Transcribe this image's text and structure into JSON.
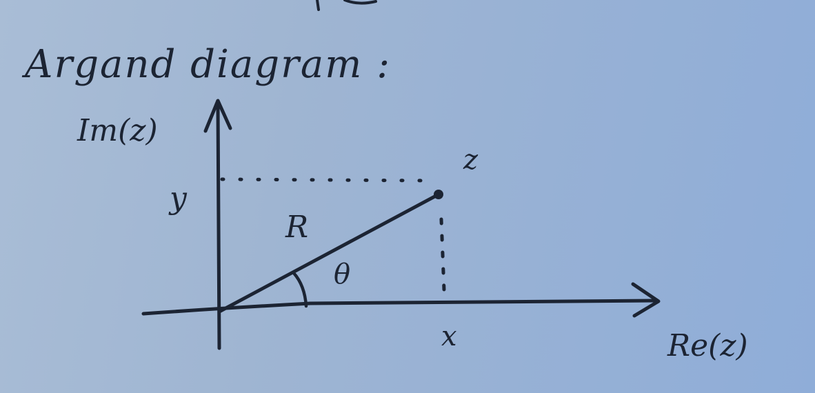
{
  "diagram": {
    "title": "Argand diagram :",
    "imaginary_axis_label": "Im(z)",
    "real_axis_label": "Re(z)",
    "point_label": "z",
    "modulus_label": "R",
    "angle_label": "θ",
    "x_label": "x",
    "y_label": "y"
  },
  "colors": {
    "background": "#9fb5d2",
    "ink": "#1c2433"
  }
}
